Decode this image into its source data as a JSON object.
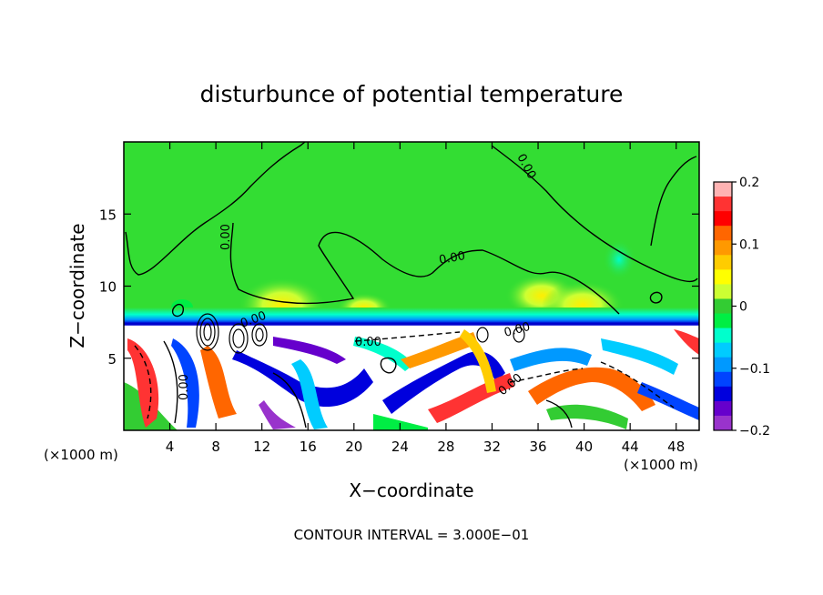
{
  "chart_data": {
    "type": "heatmap",
    "title": "disturbunce of potential temperature",
    "xlabel": "X−coordinate",
    "ylabel": "Z−coordinate",
    "x_unit_label": "(×1000 m)",
    "x_unit_label_right": "(×1000 m)",
    "xlim": [
      0,
      50
    ],
    "ylim": [
      0,
      20
    ],
    "x_ticks": [
      4,
      8,
      12,
      16,
      20,
      24,
      28,
      32,
      36,
      40,
      44,
      48
    ],
    "y_ticks": [
      5,
      10,
      15
    ],
    "colorbar": {
      "min": -0.2,
      "max": 0.2,
      "tick_values": [
        0.2,
        0.1,
        0,
        -0.1,
        -0.2
      ],
      "tick_labels": [
        "0.2",
        "0.1",
        "0",
        "−0.1",
        "−0.2"
      ],
      "colors": [
        "#ffb3b3",
        "#ff3333",
        "#ff0000",
        "#ff6600",
        "#ff9900",
        "#ffcc00",
        "#ffff00",
        "#ccff33",
        "#33cc33",
        "#00ee44",
        "#00ffcc",
        "#00ccff",
        "#0099ff",
        "#0044ff",
        "#0000dd",
        "#6600cc",
        "#9933cc"
      ]
    },
    "contour_interval_text": "CONTOUR INTERVAL = 3.000E−01",
    "contour_labels": [
      "0.00",
      "0.00",
      "0.00",
      "0.00",
      "0.00",
      "0.00",
      "0.00",
      "0.00"
    ],
    "layers": {
      "upper_field_value": 0.0,
      "inversion_height": 7.3,
      "lower_turbulent_layer": [
        0,
        7.3
      ]
    }
  }
}
